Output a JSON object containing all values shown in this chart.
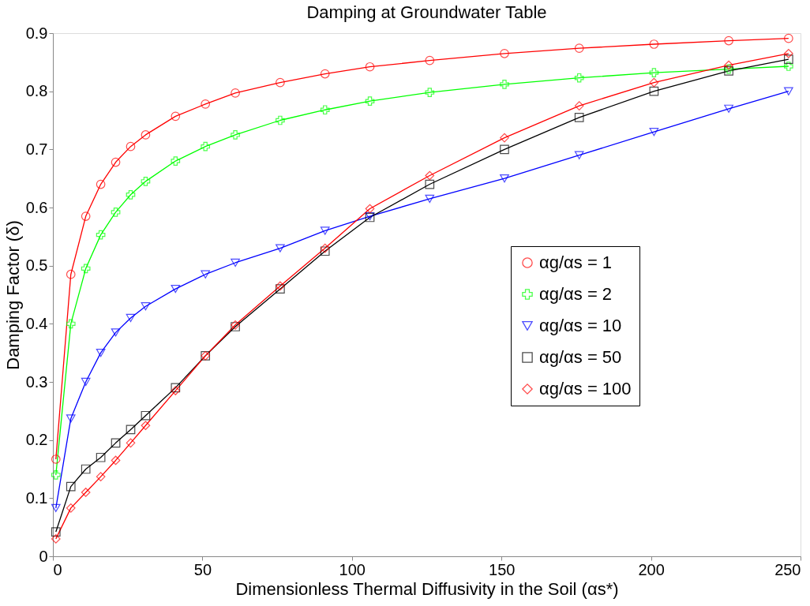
{
  "chart_data": {
    "type": "line",
    "title": "Damping at Groundwater Table",
    "xlabel": "Dimensionless Thermal Diffusivity in the Soil (αs*)",
    "ylabel": "Damping Factor (δ)",
    "x": [
      1,
      6,
      11,
      16,
      21,
      26,
      31,
      41,
      51,
      61,
      76,
      91,
      106,
      126,
      151,
      176,
      201,
      226,
      246
    ],
    "xlim": [
      0,
      250
    ],
    "xticks": [
      0,
      50,
      100,
      150,
      200,
      250
    ],
    "ylim": [
      0,
      0.9
    ],
    "yticks": [
      0,
      0.1,
      0.2,
      0.3,
      0.4,
      0.5,
      0.6,
      0.7,
      0.8,
      0.9
    ],
    "grid": false,
    "legend": "right",
    "line_style": "solid",
    "series": [
      {
        "name": "αg/αs = 1",
        "color": "#ff0000",
        "marker": "circle",
        "values": [
          0.167,
          0.485,
          0.585,
          0.64,
          0.678,
          0.705,
          0.725,
          0.757,
          0.778,
          0.797,
          0.815,
          0.83,
          0.842,
          0.853,
          0.865,
          0.874,
          0.881,
          0.887,
          0.891
        ]
      },
      {
        "name": "αg/αs = 2",
        "color": "#00ff00",
        "marker": "cross",
        "values": [
          0.14,
          0.4,
          0.495,
          0.553,
          0.592,
          0.622,
          0.645,
          0.68,
          0.705,
          0.725,
          0.75,
          0.768,
          0.783,
          0.798,
          0.812,
          0.823,
          0.832,
          0.838,
          0.843
        ]
      },
      {
        "name": "αg/αs = 10",
        "color": "#0000ff",
        "marker": "triangle",
        "values": [
          0.083,
          0.237,
          0.3,
          0.35,
          0.385,
          0.41,
          0.43,
          0.46,
          0.485,
          0.505,
          0.53,
          0.56,
          0.585,
          0.615,
          0.65,
          0.69,
          0.73,
          0.77,
          0.8
        ]
      },
      {
        "name": "αg/αs = 50",
        "color": "#000000",
        "marker": "square",
        "values": [
          0.042,
          0.12,
          0.15,
          0.17,
          0.195,
          0.218,
          0.242,
          0.29,
          0.345,
          0.395,
          0.46,
          0.525,
          0.583,
          0.64,
          0.7,
          0.755,
          0.8,
          0.835,
          0.855
        ]
      },
      {
        "name": "αg/αs = 100",
        "color": "#ff0000",
        "marker": "diamond",
        "values": [
          0.03,
          0.083,
          0.11,
          0.137,
          0.165,
          0.195,
          0.225,
          0.285,
          0.345,
          0.398,
          0.465,
          0.53,
          0.598,
          0.655,
          0.72,
          0.775,
          0.815,
          0.845,
          0.865
        ]
      }
    ]
  }
}
